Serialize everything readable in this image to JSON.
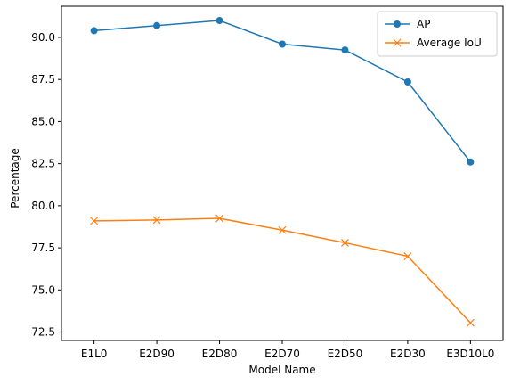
{
  "chart_data": {
    "type": "line",
    "categories": [
      "E1L0",
      "E2D90",
      "E2D80",
      "E2D70",
      "E2D50",
      "E2D30",
      "E3D10L0"
    ],
    "series": [
      {
        "name": "AP",
        "color": "#1f77b4",
        "marker": "circle",
        "values": [
          90.4,
          90.7,
          91.0,
          89.6,
          89.25,
          87.35,
          82.6
        ]
      },
      {
        "name": "Average IoU",
        "color": "#ff7f0e",
        "marker": "x",
        "values": [
          79.1,
          79.15,
          79.25,
          78.55,
          77.8,
          77.0,
          73.05
        ]
      }
    ],
    "xlabel": "Model Name",
    "ylabel": "Percentage",
    "ylim": [
      72.0,
      91.85
    ],
    "yticks": [
      "72.5",
      "75.0",
      "77.5",
      "80.0",
      "82.5",
      "85.0",
      "87.5",
      "90.0"
    ],
    "grid": false,
    "legend": "top-right"
  }
}
